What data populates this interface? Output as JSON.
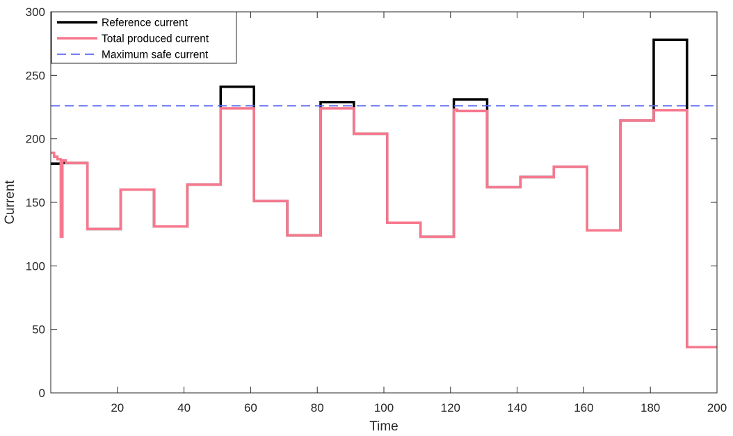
{
  "chart_data": {
    "type": "line",
    "xlabel": "Time",
    "ylabel": "Current",
    "xlim": [
      0,
      200
    ],
    "ylim": [
      0,
      300
    ],
    "xticks": [
      20,
      40,
      60,
      80,
      100,
      120,
      140,
      160,
      180,
      200
    ],
    "yticks": [
      0,
      50,
      100,
      150,
      200,
      250,
      300
    ],
    "grid": false,
    "legend_position": "top-left",
    "series": [
      {
        "name": "Reference current",
        "color": "#000000",
        "style": "solid",
        "step": true,
        "x": [
          0,
          3.5,
          3.5,
          11,
          11,
          21,
          21,
          31,
          31,
          41,
          41,
          51,
          51,
          61,
          61,
          71,
          71,
          81,
          81,
          91,
          91,
          101,
          101,
          111,
          111,
          121,
          121,
          131,
          131,
          141,
          141,
          151,
          151,
          161,
          161,
          171,
          171,
          181,
          181,
          191,
          191,
          200
        ],
        "y": [
          180.5,
          180.5,
          181,
          181,
          129,
          129,
          160,
          160,
          131,
          131,
          164,
          164,
          241,
          241,
          151,
          151,
          124,
          124,
          229,
          229,
          204,
          204,
          134,
          134,
          123,
          123,
          231,
          231,
          162,
          162,
          170,
          170,
          178,
          178,
          128,
          128,
          214.5,
          214.5,
          278,
          278,
          36,
          36
        ]
      },
      {
        "name": "Total produced current",
        "color": "#f7788e",
        "style": "solid",
        "step": true,
        "x": [
          0,
          1,
          1,
          2,
          2,
          3,
          3,
          3.5,
          3.5,
          4.5,
          4.5,
          5,
          5,
          11,
          11,
          21,
          21,
          31,
          31,
          41,
          41,
          51,
          51,
          61,
          61,
          71,
          71,
          81,
          81,
          91,
          91,
          101,
          101,
          111,
          111,
          121,
          121,
          122,
          122,
          131,
          131,
          141,
          141,
          151,
          151,
          161,
          161,
          171,
          171,
          181,
          181,
          191,
          191,
          200
        ],
        "y": [
          189,
          189,
          186,
          186,
          184,
          184,
          123,
          123,
          183,
          183,
          181,
          181,
          181,
          181,
          129,
          129,
          160,
          160,
          131,
          131,
          164,
          164,
          224,
          224,
          151,
          151,
          124,
          124,
          224,
          224,
          204,
          204,
          134,
          134,
          123,
          123,
          223,
          223,
          222,
          222,
          162,
          162,
          170,
          170,
          178,
          178,
          128,
          128,
          214.5,
          214.5,
          222.5,
          222.5,
          36,
          36
        ]
      },
      {
        "name": "Maximum safe current",
        "color": "#5b6cf5",
        "style": "dashed",
        "x": [
          0,
          200
        ],
        "y": [
          226,
          226
        ]
      }
    ]
  }
}
